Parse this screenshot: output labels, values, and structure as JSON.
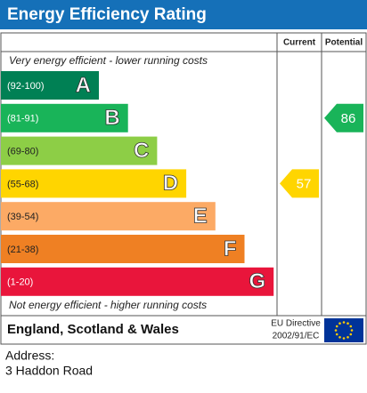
{
  "header": {
    "title": "Energy Efficiency Rating"
  },
  "chart_data": {
    "type": "epc",
    "top_note": "Very energy efficient - lower running costs",
    "bottom_note": "Not energy efficient - higher running costs",
    "bands": [
      {
        "range": "(92-100)",
        "letter": "A",
        "color": "#008054"
      },
      {
        "range": "(81-91)",
        "letter": "B",
        "color": "#19b459"
      },
      {
        "range": "(69-80)",
        "letter": "C",
        "color": "#8dce46"
      },
      {
        "range": "(55-68)",
        "letter": "D",
        "color": "#ffd500"
      },
      {
        "range": "(39-54)",
        "letter": "E",
        "color": "#fcaa65"
      },
      {
        "range": "(21-38)",
        "letter": "F",
        "color": "#ef8023"
      },
      {
        "range": "(1-20)",
        "letter": "G",
        "color": "#e9153b"
      }
    ],
    "series": [
      {
        "name": "Current",
        "color": "#ffd500",
        "values": [
          57
        ]
      },
      {
        "name": "Potential",
        "color": "#19b459",
        "values": [
          86
        ]
      }
    ]
  },
  "footer": {
    "region": "England, Scotland & Wales",
    "directive": [
      "EU Directive",
      "2002/91/EC"
    ]
  },
  "address": {
    "label": "Address:",
    "value": "3 Haddon Road"
  }
}
